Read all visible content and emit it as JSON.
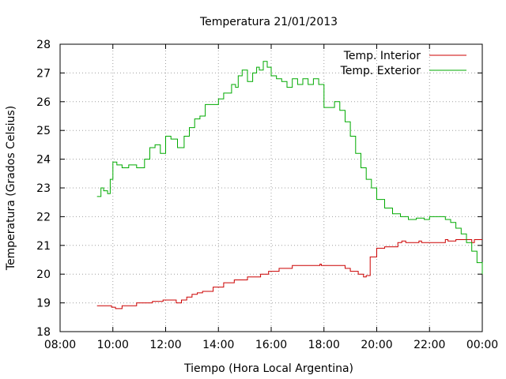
{
  "chart_data": {
    "type": "line",
    "title": "Temperatura 21/01/2013",
    "xlabel": "Tiempo (Hora Local Argentina)",
    "ylabel": "Temperatura (Grados Celsius)",
    "xlim": [
      8,
      24
    ],
    "ylim": [
      18,
      28
    ],
    "xticks": [
      {
        "value": 8,
        "label": "08:00"
      },
      {
        "value": 10,
        "label": "10:00"
      },
      {
        "value": 12,
        "label": "12:00"
      },
      {
        "value": 14,
        "label": "14:00"
      },
      {
        "value": 16,
        "label": "16:00"
      },
      {
        "value": 18,
        "label": "18:00"
      },
      {
        "value": 20,
        "label": "20:00"
      },
      {
        "value": 22,
        "label": "22:00"
      },
      {
        "value": 24,
        "label": "00:00"
      }
    ],
    "yticks": [
      {
        "value": 18,
        "label": "18"
      },
      {
        "value": 19,
        "label": "19"
      },
      {
        "value": 20,
        "label": "20"
      },
      {
        "value": 21,
        "label": "21"
      },
      {
        "value": 22,
        "label": "22"
      },
      {
        "value": 23,
        "label": "23"
      },
      {
        "value": 24,
        "label": "24"
      },
      {
        "value": 25,
        "label": "25"
      },
      {
        "value": 26,
        "label": "26"
      },
      {
        "value": 27,
        "label": "27"
      },
      {
        "value": 28,
        "label": "28"
      }
    ],
    "grid": true,
    "legend": "top-right",
    "series": [
      {
        "name": "Temp. Interior",
        "color": "#cc0000",
        "x": [
          9.4,
          9.9,
          9.95,
          10.1,
          10.35,
          10.9,
          11.5,
          11.9,
          12.4,
          12.6,
          12.8,
          13.0,
          13.2,
          13.4,
          13.8,
          14.2,
          14.6,
          15.1,
          15.6,
          15.9,
          16.3,
          16.8,
          17.8,
          17.85,
          17.9,
          18.5,
          18.8,
          19.0,
          19.3,
          19.5,
          19.6,
          19.75,
          20.0,
          20.3,
          20.8,
          20.95,
          21.1,
          21.5,
          21.6,
          21.7,
          22.0,
          22.6,
          22.7,
          23.0,
          23.6,
          23.7,
          24.0
        ],
        "y": [
          18.9,
          18.9,
          18.85,
          18.8,
          18.9,
          19.0,
          19.05,
          19.1,
          19.0,
          19.1,
          19.2,
          19.3,
          19.35,
          19.4,
          19.55,
          19.7,
          19.8,
          19.9,
          20.0,
          20.1,
          20.2,
          20.3,
          20.3,
          20.35,
          20.3,
          20.3,
          20.2,
          20.1,
          20.0,
          19.9,
          19.95,
          20.6,
          20.9,
          20.95,
          21.1,
          21.15,
          21.1,
          21.1,
          21.15,
          21.1,
          21.1,
          21.2,
          21.15,
          21.2,
          21.1,
          21.2,
          21.2
        ]
      },
      {
        "name": "Temp. Exterior",
        "color": "#00aa00",
        "x": [
          9.4,
          9.55,
          9.65,
          9.8,
          9.9,
          10.0,
          10.15,
          10.35,
          10.6,
          10.9,
          11.2,
          11.4,
          11.6,
          11.8,
          12.0,
          12.2,
          12.45,
          12.7,
          12.9,
          13.1,
          13.3,
          13.5,
          13.8,
          14.0,
          14.2,
          14.5,
          14.65,
          14.75,
          14.9,
          15.1,
          15.3,
          15.45,
          15.55,
          15.7,
          15.85,
          16.0,
          16.2,
          16.4,
          16.6,
          16.8,
          17.0,
          17.2,
          17.4,
          17.6,
          17.8,
          18.0,
          18.2,
          18.4,
          18.6,
          18.8,
          19.0,
          19.2,
          19.4,
          19.6,
          19.8,
          20.0,
          20.3,
          20.6,
          20.9,
          21.2,
          21.5,
          21.8,
          22.0,
          22.4,
          22.6,
          22.8,
          23.0,
          23.2,
          23.4,
          23.6,
          23.8,
          24.0
        ],
        "y": [
          22.7,
          23.0,
          22.9,
          22.8,
          23.3,
          23.9,
          23.8,
          23.7,
          23.8,
          23.7,
          24.0,
          24.4,
          24.5,
          24.2,
          24.8,
          24.7,
          24.4,
          24.8,
          25.1,
          25.4,
          25.5,
          25.9,
          25.9,
          26.1,
          26.3,
          26.6,
          26.5,
          26.9,
          27.1,
          26.7,
          27.0,
          27.2,
          27.1,
          27.4,
          27.2,
          26.9,
          26.8,
          26.7,
          26.5,
          26.8,
          26.6,
          26.8,
          26.6,
          26.8,
          26.6,
          25.8,
          25.8,
          26.0,
          25.7,
          25.3,
          24.8,
          24.2,
          23.7,
          23.3,
          23.0,
          22.6,
          22.3,
          22.1,
          22.0,
          21.9,
          21.95,
          21.9,
          22.0,
          22.0,
          21.9,
          21.8,
          21.6,
          21.4,
          21.1,
          20.8,
          20.4,
          20.0
        ]
      }
    ]
  }
}
